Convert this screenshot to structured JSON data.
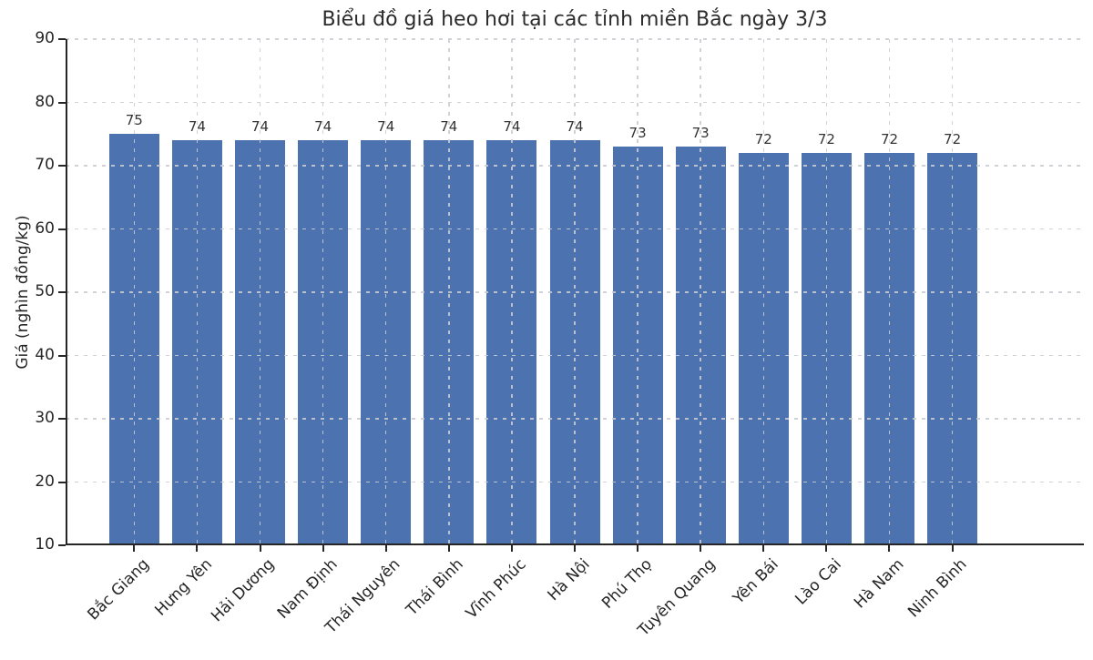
{
  "chart_data": {
    "type": "bar",
    "title": "Biểu đồ giá heo hơi tại các tỉnh miền Bắc ngày 3/3",
    "xlabel": "",
    "ylabel": "Giá (nghìn đồng/kg)",
    "categories": [
      "Bắc Giang",
      "Hưng Yên",
      "Hải Dương",
      "Nam Định",
      "Thái Nguyên",
      "Thái Bình",
      "Vĩnh Phúc",
      "Hà Nội",
      "Phú Thọ",
      "Tuyên Quang",
      "Yên Bái",
      "Lào Cai",
      "Hà Nam",
      "Ninh Bình"
    ],
    "values": [
      75,
      74,
      74,
      74,
      74,
      74,
      74,
      74,
      73,
      73,
      72,
      72,
      72,
      72
    ],
    "value_labels_shown": true,
    "ylim": [
      10,
      90
    ],
    "yticks": [
      10,
      20,
      30,
      40,
      50,
      60,
      70,
      80,
      90
    ],
    "x_tick_rotation_degrees": 45,
    "bar_color": "#4C72B0",
    "grid": "dashed light-gray gridlines on both axes, drawn over bars",
    "grid_color": "#c9ccd1",
    "axis_color": "#262626",
    "legend": "none"
  }
}
